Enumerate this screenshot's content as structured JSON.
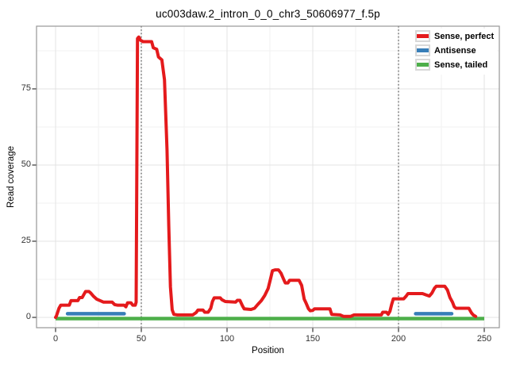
{
  "title": "uc003daw.2_intron_0_0_chr3_50606977_f.5p",
  "chart_data": {
    "type": "line",
    "title": "uc003daw.2_intron_0_0_chr3_50606977_f.5p",
    "xlabel": "Position",
    "ylabel": "Read coverage",
    "xlim": [
      -11,
      259
    ],
    "ylim": [
      -3.4,
      95.6
    ],
    "x_ticks": [
      0,
      50,
      100,
      150,
      200,
      250
    ],
    "x_tick_labels": [
      "0",
      "50",
      "100",
      "150",
      "200",
      "250"
    ],
    "y_ticks": [
      0,
      25,
      50,
      75
    ],
    "y_tick_labels": [
      "0",
      "25",
      "50",
      "75"
    ],
    "x_minor_ticks": [
      25,
      75,
      125,
      175,
      225
    ],
    "y_minor_ticks": [
      12.5,
      37.5,
      62.5,
      87.5
    ],
    "grid": "on",
    "vlines": {
      "positions": [
        50,
        200
      ],
      "style": "dotted",
      "color": "#4a4a4a"
    },
    "legend_position": "top-right-inside",
    "series": [
      {
        "name": "Sense, perfect",
        "color": "#E41A1C",
        "points": [
          [
            0,
            0
          ],
          [
            0.5,
            0.5
          ],
          [
            2,
            3
          ],
          [
            3,
            4
          ],
          [
            8,
            4
          ],
          [
            9,
            5.5
          ],
          [
            13,
            5.5
          ],
          [
            14,
            6.5
          ],
          [
            15.5,
            6.5
          ],
          [
            16.5,
            7.5
          ],
          [
            17.5,
            8.5
          ],
          [
            19.5,
            8.5
          ],
          [
            20.5,
            8
          ],
          [
            22,
            7
          ],
          [
            24,
            6
          ],
          [
            26,
            5.5
          ],
          [
            28,
            5
          ],
          [
            33,
            5
          ],
          [
            34.5,
            4.2
          ],
          [
            36,
            4
          ],
          [
            40,
            4
          ],
          [
            41,
            3.5
          ],
          [
            42,
            4.8
          ],
          [
            44,
            4.8
          ],
          [
            45,
            4
          ],
          [
            46.5,
            4
          ],
          [
            47,
            5
          ],
          [
            47.8,
            91.5
          ],
          [
            48.5,
            92
          ],
          [
            49.5,
            91
          ],
          [
            51,
            90.5
          ],
          [
            56,
            90.5
          ],
          [
            57,
            88.5
          ],
          [
            59,
            88
          ],
          [
            60,
            85.5
          ],
          [
            62,
            84.5
          ],
          [
            63.5,
            78
          ],
          [
            65,
            55
          ],
          [
            66,
            30
          ],
          [
            67,
            10
          ],
          [
            68,
            2.5
          ],
          [
            69,
            1
          ],
          [
            71,
            0.8
          ],
          [
            80,
            0.8
          ],
          [
            82,
            1.6
          ],
          [
            83,
            2.4
          ],
          [
            86,
            2.4
          ],
          [
            87,
            1.7
          ],
          [
            89,
            1.7
          ],
          [
            90.5,
            3
          ],
          [
            91.5,
            5.2
          ],
          [
            92.5,
            6.4
          ],
          [
            96,
            6.4
          ],
          [
            97,
            5.8
          ],
          [
            99,
            5.2
          ],
          [
            105,
            5
          ],
          [
            106,
            5.6
          ],
          [
            107.5,
            5.6
          ],
          [
            109,
            3.8
          ],
          [
            110,
            2.8
          ],
          [
            114,
            2.6
          ],
          [
            116,
            3
          ],
          [
            118,
            4.3
          ],
          [
            120,
            5.5
          ],
          [
            122,
            7.2
          ],
          [
            124,
            9.5
          ],
          [
            125.5,
            13
          ],
          [
            126.5,
            15.3
          ],
          [
            128,
            15.6
          ],
          [
            130,
            15.6
          ],
          [
            131.5,
            14.5
          ],
          [
            133,
            12.5
          ],
          [
            134,
            11.3
          ],
          [
            135.5,
            11.3
          ],
          [
            136.5,
            12.2
          ],
          [
            142,
            12.2
          ],
          [
            143.5,
            10.5
          ],
          [
            145,
            6
          ],
          [
            146,
            4.8
          ],
          [
            147.5,
            2.8
          ],
          [
            148.5,
            2.2
          ],
          [
            150,
            2.3
          ],
          [
            151,
            2.8
          ],
          [
            160,
            2.8
          ],
          [
            161,
            1
          ],
          [
            163,
            0.9
          ],
          [
            166,
            0.8
          ],
          [
            168,
            0.3
          ],
          [
            172,
            0.3
          ],
          [
            174,
            0.8
          ],
          [
            190,
            0.8
          ],
          [
            190.8,
            1.7
          ],
          [
            193,
            1.7
          ],
          [
            194,
            1
          ],
          [
            195,
            2
          ],
          [
            196,
            4.3
          ],
          [
            197,
            6.1
          ],
          [
            203,
            6.1
          ],
          [
            204.5,
            7
          ],
          [
            205.5,
            7.8
          ],
          [
            214,
            7.8
          ],
          [
            216,
            7.4
          ],
          [
            218,
            7
          ],
          [
            219.5,
            8
          ],
          [
            221,
            9.6
          ],
          [
            222,
            10.2
          ],
          [
            227,
            10.2
          ],
          [
            228.5,
            9
          ],
          [
            230,
            6.5
          ],
          [
            231.5,
            5
          ],
          [
            232.5,
            3.5
          ],
          [
            233.5,
            3
          ],
          [
            241,
            3
          ],
          [
            242.5,
            1.5
          ],
          [
            243.5,
            0.8
          ],
          [
            245,
            0.3
          ]
        ]
      },
      {
        "name": "Antisense",
        "color": "#377EB8",
        "segments": [
          [
            [
              7,
              1.2
            ],
            [
              40,
              1.2
            ]
          ],
          [
            [
              210,
              1.2
            ],
            [
              231,
              1.2
            ]
          ]
        ]
      },
      {
        "name": "Sense, tailed",
        "color": "#4DAF4A",
        "segments": [
          [
            [
              0,
              0
            ],
            [
              250,
              0
            ]
          ]
        ]
      }
    ],
    "legend": [
      {
        "label": "Sense, perfect",
        "color": "#E41A1C"
      },
      {
        "label": "Antisense",
        "color": "#377EB8"
      },
      {
        "label": "Sense, tailed",
        "color": "#4DAF4A"
      }
    ]
  }
}
